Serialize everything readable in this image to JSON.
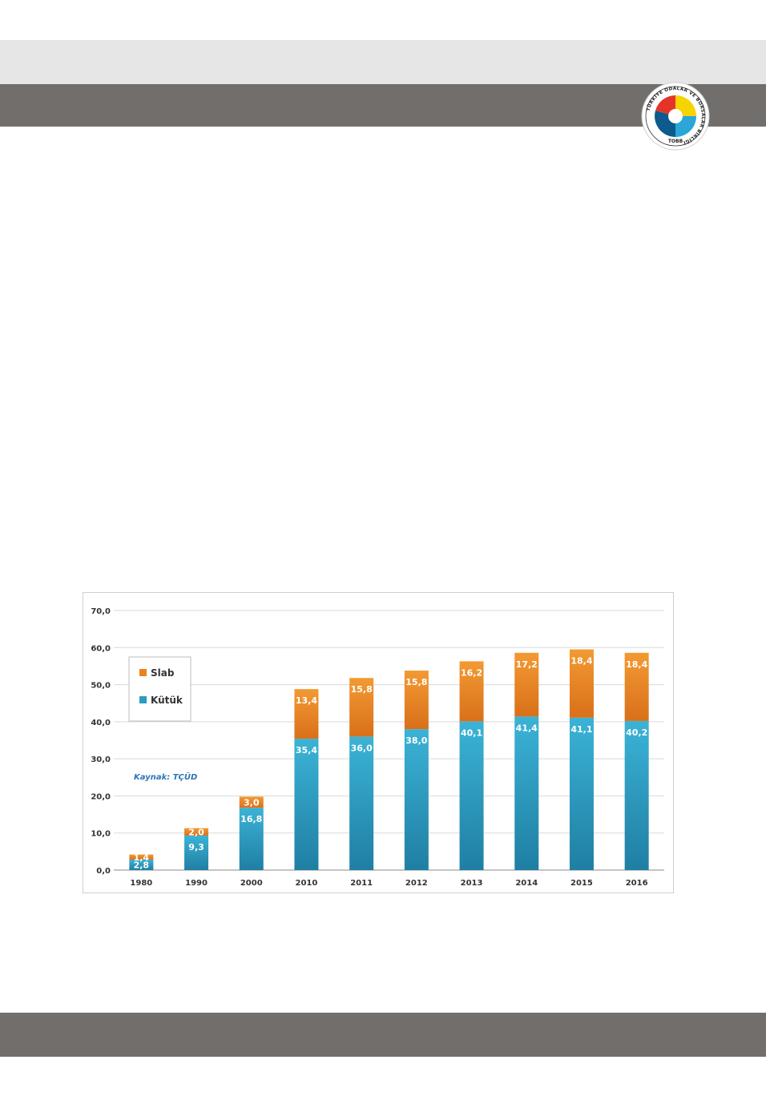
{
  "logo": {
    "ring_text": "TÜRKİYE ODALAR VE BORSALAR BİRLİĞİ",
    "abbr": "TOBB",
    "colors": [
      "#e63329",
      "#f5d400",
      "#2aa6d8",
      "#0d5a8c"
    ]
  },
  "chart_data": {
    "type": "bar",
    "stacked": true,
    "categories": [
      "1980",
      "1990",
      "2000",
      "2010",
      "2011",
      "2012",
      "2013",
      "2014",
      "2015",
      "2016"
    ],
    "series": [
      {
        "name": "Kütük",
        "values": [
          2.8,
          9.3,
          16.8,
          35.4,
          36.0,
          38.0,
          40.1,
          41.4,
          41.1,
          40.2
        ],
        "labels": [
          "2,8",
          "9,3",
          "16,8",
          "35,4",
          "36,0",
          "38,0",
          "40,1",
          "41,4",
          "41,1",
          "40,2"
        ],
        "color": "#2a9cc1"
      },
      {
        "name": "Slab",
        "values": [
          1.4,
          2.0,
          3.0,
          13.4,
          15.8,
          15.8,
          16.2,
          17.2,
          18.4,
          18.4
        ],
        "labels": [
          "1,4",
          "2,0",
          "3,0",
          "13,4",
          "15,8",
          "15,8",
          "16,2",
          "17,2",
          "18,4",
          "18,4"
        ],
        "color": "#e9821f"
      }
    ],
    "ylim": [
      0,
      70
    ],
    "yticks": [
      "0,0",
      "10,0",
      "20,0",
      "30,0",
      "40,0",
      "50,0",
      "60,0",
      "70,0"
    ],
    "legend_order": [
      "Slab",
      "Kütük"
    ],
    "legend_position": "top-left",
    "source_note": "Kaynak: TÇÜD",
    "grid": true,
    "title": "",
    "xlabel": "",
    "ylabel": ""
  }
}
